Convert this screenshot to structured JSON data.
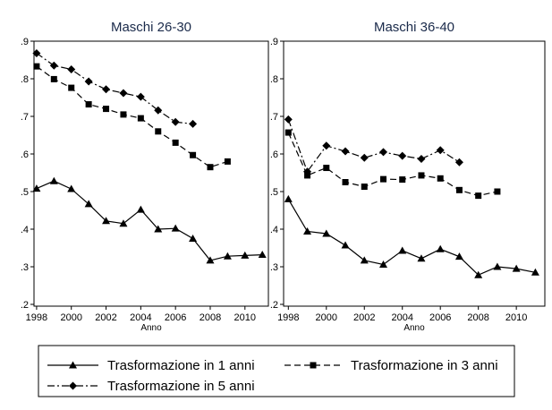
{
  "chart_data": [
    {
      "type": "line",
      "title": "Maschi 26-30",
      "xlabel": "Anno",
      "ylabel": "",
      "xlim": [
        1998,
        2011
      ],
      "ylim": [
        0.2,
        0.9
      ],
      "x_ticks": [
        1998,
        2000,
        2002,
        2004,
        2006,
        2008,
        2010
      ],
      "y_ticks": [
        0.2,
        0.3,
        0.4,
        0.5,
        0.6,
        0.7,
        0.8,
        0.9
      ],
      "y_tick_labels": [
        ".2",
        ".3",
        ".4",
        ".5",
        ".6",
        ".7",
        ".8",
        ".9"
      ],
      "series": [
        {
          "name": "Trasformazione in 1 anni",
          "x": [
            1998,
            1999,
            2000,
            2001,
            2002,
            2003,
            2004,
            2005,
            2006,
            2007,
            2008,
            2009,
            2010,
            2011
          ],
          "values": [
            0.508,
            0.528,
            0.507,
            0.467,
            0.422,
            0.415,
            0.452,
            0.4,
            0.402,
            0.375,
            0.317,
            0.328,
            0.33,
            0.332
          ]
        },
        {
          "name": "Trasformazione in 3 anni",
          "x": [
            1998,
            1999,
            2000,
            2001,
            2002,
            2003,
            2004,
            2005,
            2006,
            2007,
            2008,
            2009
          ],
          "values": [
            0.833,
            0.799,
            0.776,
            0.732,
            0.72,
            0.705,
            0.695,
            0.66,
            0.63,
            0.597,
            0.565,
            0.58
          ]
        },
        {
          "name": "Trasformazione in 5 anni",
          "x": [
            1998,
            1999,
            2000,
            2001,
            2002,
            2003,
            2004,
            2005,
            2006,
            2007
          ],
          "values": [
            0.868,
            0.835,
            0.825,
            0.793,
            0.772,
            0.762,
            0.752,
            0.716,
            0.685,
            0.68
          ]
        }
      ]
    },
    {
      "type": "line",
      "title": "Maschi 36-40",
      "xlabel": "Anno",
      "ylabel": "",
      "xlim": [
        1998,
        2011
      ],
      "ylim": [
        0.2,
        0.9
      ],
      "x_ticks": [
        1998,
        2000,
        2002,
        2004,
        2006,
        2008,
        2010
      ],
      "y_ticks": [
        0.2,
        0.3,
        0.4,
        0.5,
        0.6,
        0.7,
        0.8,
        0.9
      ],
      "y_tick_labels": [
        ".2",
        ".3",
        ".4",
        ".5",
        ".6",
        ".7",
        ".8",
        ".9"
      ],
      "series": [
        {
          "name": "Trasformazione in 1 anni",
          "x": [
            1998,
            1999,
            2000,
            2001,
            2002,
            2003,
            2004,
            2005,
            2006,
            2007,
            2008,
            2009,
            2010,
            2011
          ],
          "values": [
            0.48,
            0.394,
            0.388,
            0.357,
            0.317,
            0.306,
            0.343,
            0.322,
            0.347,
            0.327,
            0.278,
            0.3,
            0.295,
            0.285
          ]
        },
        {
          "name": "Trasformazione in 3 anni",
          "x": [
            1998,
            1999,
            2000,
            2001,
            2002,
            2003,
            2004,
            2005,
            2006,
            2007,
            2008,
            2009
          ],
          "values": [
            0.657,
            0.543,
            0.563,
            0.525,
            0.513,
            0.533,
            0.532,
            0.543,
            0.535,
            0.504,
            0.489,
            0.5
          ]
        },
        {
          "name": "Trasformazione in 5 anni",
          "x": [
            1998,
            1999,
            2000,
            2001,
            2002,
            2003,
            2004,
            2005,
            2006,
            2007
          ],
          "values": [
            0.692,
            0.553,
            0.622,
            0.607,
            0.59,
            0.605,
            0.595,
            0.587,
            0.61,
            0.578
          ]
        }
      ]
    }
  ],
  "legend": {
    "placement": "bottom",
    "items": [
      {
        "label": "Trasformazione in 1 anni",
        "style": "solid",
        "marker": "triangle"
      },
      {
        "label": "Trasformazione in 3 anni",
        "style": "dash",
        "marker": "square"
      },
      {
        "label": "Trasformazione in 5 anni",
        "style": "dashdot",
        "marker": "diamond"
      }
    ]
  },
  "colors": {
    "line": "#000000",
    "title": "#1a2a4a",
    "background": "#ffffff"
  }
}
